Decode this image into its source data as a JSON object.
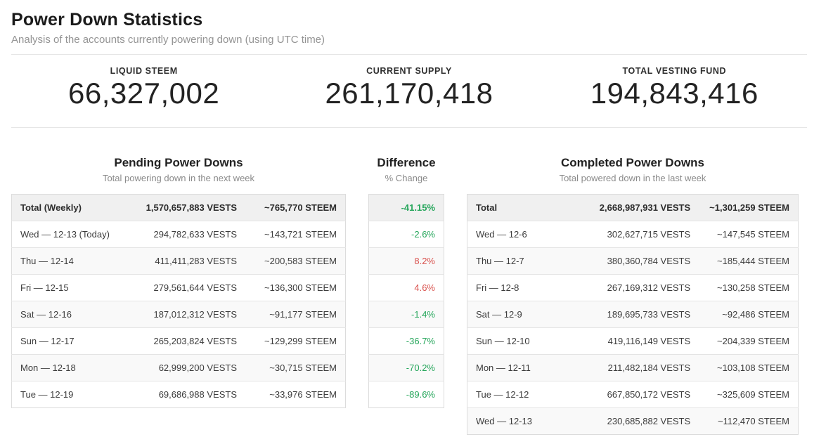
{
  "page": {
    "title": "Power Down Statistics",
    "subtitle": "Analysis of the accounts currently powering down (using UTC time)"
  },
  "colors": {
    "green": "#26a65b",
    "red": "#d9534f"
  },
  "stats": [
    {
      "label": "LIQUID STEEM",
      "value": "66,327,002"
    },
    {
      "label": "CURRENT SUPPLY",
      "value": "261,170,418"
    },
    {
      "label": "TOTAL VESTING FUND",
      "value": "194,843,416"
    }
  ],
  "pending": {
    "title": "Pending Power Downs",
    "subtitle": "Total powering down in the next week",
    "total": {
      "label": "Total (Weekly)",
      "vests": "1,570,657,883 VESTS",
      "steem": "~765,770 STEEM"
    },
    "rows": [
      {
        "day": "Wed — 12-13 (Today)",
        "vests": "294,782,633 VESTS",
        "steem": "~143,721 STEEM"
      },
      {
        "day": "Thu — 12-14",
        "vests": "411,411,283 VESTS",
        "steem": "~200,583 STEEM"
      },
      {
        "day": "Fri — 12-15",
        "vests": "279,561,644 VESTS",
        "steem": "~136,300 STEEM"
      },
      {
        "day": "Sat — 12-16",
        "vests": "187,012,312 VESTS",
        "steem": "~91,177 STEEM"
      },
      {
        "day": "Sun — 12-17",
        "vests": "265,203,824 VESTS",
        "steem": "~129,299 STEEM"
      },
      {
        "day": "Mon — 12-18",
        "vests": "62,999,200 VESTS",
        "steem": "~30,715 STEEM"
      },
      {
        "day": "Tue — 12-19",
        "vests": "69,686,988 VESTS",
        "steem": "~33,976 STEEM"
      }
    ]
  },
  "difference": {
    "title": "Difference",
    "subtitle": "% Change",
    "total": {
      "value": "-41.15%",
      "color": "green"
    },
    "rows": [
      {
        "value": "-2.6%",
        "color": "green"
      },
      {
        "value": "8.2%",
        "color": "red"
      },
      {
        "value": "4.6%",
        "color": "red"
      },
      {
        "value": "-1.4%",
        "color": "green"
      },
      {
        "value": "-36.7%",
        "color": "green"
      },
      {
        "value": "-70.2%",
        "color": "green"
      },
      {
        "value": "-89.6%",
        "color": "green"
      }
    ]
  },
  "completed": {
    "title": "Completed Power Downs",
    "subtitle": "Total powered down in the last week",
    "total": {
      "label": "Total",
      "vests": "2,668,987,931 VESTS",
      "steem": "~1,301,259 STEEM"
    },
    "rows": [
      {
        "day": "Wed — 12-6",
        "vests": "302,627,715 VESTS",
        "steem": "~147,545 STEEM"
      },
      {
        "day": "Thu — 12-7",
        "vests": "380,360,784 VESTS",
        "steem": "~185,444 STEEM"
      },
      {
        "day": "Fri — 12-8",
        "vests": "267,169,312 VESTS",
        "steem": "~130,258 STEEM"
      },
      {
        "day": "Sat — 12-9",
        "vests": "189,695,733 VESTS",
        "steem": "~92,486 STEEM"
      },
      {
        "day": "Sun — 12-10",
        "vests": "419,116,149 VESTS",
        "steem": "~204,339 STEEM"
      },
      {
        "day": "Mon — 12-11",
        "vests": "211,482,184 VESTS",
        "steem": "~103,108 STEEM"
      },
      {
        "day": "Tue — 12-12",
        "vests": "667,850,172 VESTS",
        "steem": "~325,609 STEEM"
      },
      {
        "day": "Wed — 12-13",
        "vests": "230,685,882 VESTS",
        "steem": "~112,470 STEEM"
      }
    ]
  }
}
